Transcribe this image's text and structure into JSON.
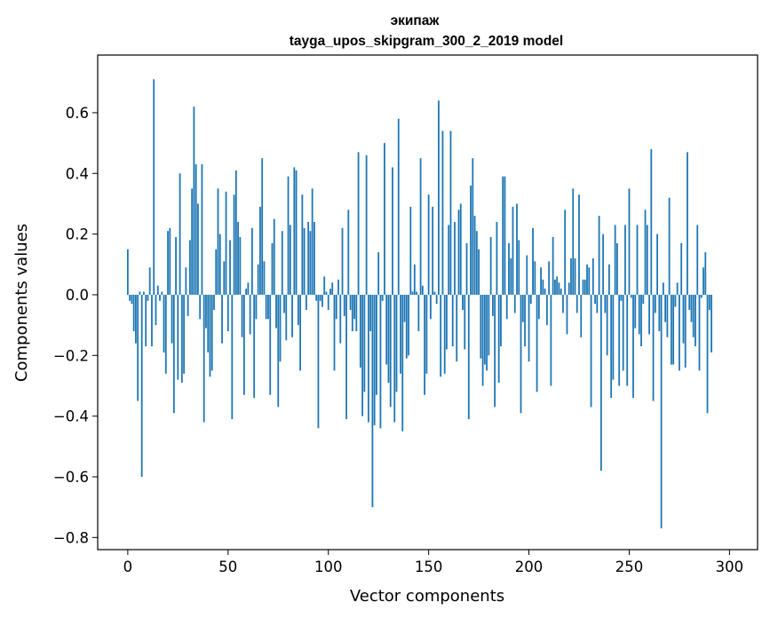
{
  "chart_data": {
    "type": "bar",
    "title": "экипаж",
    "subtitle": "tayga_upos_skipgram_300_2_2019 model",
    "xlabel": "Vector components",
    "ylabel": "Components values",
    "xlim": [
      -15,
      314
    ],
    "ylim": [
      -0.84,
      0.79
    ],
    "x_ticks": [
      0,
      50,
      100,
      150,
      200,
      250,
      300
    ],
    "x_tick_labels": [
      "0",
      "50",
      "100",
      "150",
      "200",
      "250",
      "300"
    ],
    "y_ticks": [
      0.6,
      0.4,
      0.2,
      0.0,
      -0.2,
      -0.4,
      -0.6,
      -0.8
    ],
    "y_tick_labels": [
      "0.6",
      "0.4",
      "0.2",
      "0.0",
      "−0.2",
      "−0.4",
      "−0.6",
      "−0.8"
    ],
    "bar_color": "#1f77b4",
    "grid": false,
    "series": [
      {
        "x_start": 0,
        "values": [
          0.15,
          -0.02,
          -0.03,
          -0.12,
          -0.16,
          -0.35,
          0.01,
          -0.6,
          0.01,
          -0.17,
          -0.02,
          0.09,
          -0.17,
          0.71,
          -0.1,
          0.03,
          -0.02,
          0.01,
          -0.19,
          -0.26,
          0.21,
          0.22,
          -0.16,
          -0.39,
          0.19,
          -0.28,
          0.4,
          -0.29,
          -0.26,
          0.09,
          -0.07,
          0.18,
          0.35,
          0.62,
          0.43,
          0.3,
          -0.08,
          0.43,
          -0.42,
          -0.11,
          -0.19,
          -0.27,
          -0.25,
          -0.05,
          0.15,
          0.35,
          0.2,
          -0.16,
          0.11,
          0.34,
          -0.12,
          0.18,
          -0.41,
          0.33,
          0.41,
          0.24,
          0.19,
          -0.14,
          -0.33,
          0.02,
          0.04,
          -0.13,
          0.22,
          -0.34,
          -0.08,
          0.1,
          0.29,
          0.45,
          0.11,
          -0.08,
          -0.08,
          -0.33,
          0.17,
          0.25,
          -0.11,
          -0.37,
          -0.22,
          0.21,
          -0.06,
          -0.15,
          0.39,
          0.23,
          -0.14,
          0.42,
          0.41,
          -0.1,
          -0.25,
          0.33,
          0.22,
          -0.05,
          0.24,
          0.21,
          0.35,
          0.24,
          -0.02,
          -0.44,
          -0.02,
          -0.04,
          0.06,
          0.01,
          -0.05,
          0.02,
          0.04,
          -0.25,
          -0.08,
          0.05,
          -0.16,
          0.22,
          -0.07,
          -0.41,
          0.28,
          -0.05,
          -0.12,
          -0.08,
          -0.12,
          0.47,
          -0.24,
          -0.4,
          -0.32,
          0.46,
          -0.42,
          -0.12,
          -0.7,
          -0.43,
          -0.33,
          0.14,
          -0.44,
          -0.02,
          0.5,
          -0.23,
          -0.29,
          -0.37,
          0.42,
          -0.42,
          -0.32,
          0.58,
          -0.26,
          -0.45,
          -0.09,
          -0.21,
          -0.2,
          0.29,
          0.01,
          0.1,
          0.01,
          -0.12,
          0.45,
          0.03,
          -0.33,
          -0.26,
          0.33,
          -0.08,
          0.29,
          0.01,
          -0.03,
          0.64,
          -0.27,
          0.54,
          -0.26,
          -0.18,
          0.23,
          0.54,
          -0.17,
          0.24,
          -0.22,
          0.28,
          0.3,
          -0.05,
          -0.18,
          0.17,
          -0.41,
          0.36,
          0.45,
          0.26,
          0.21,
          0.15,
          -0.21,
          -0.3,
          -0.23,
          -0.25,
          -0.2,
          0.19,
          -0.07,
          -0.37,
          0.24,
          -0.29,
          -0.17,
          0.39,
          0.39,
          -0.08,
          0.17,
          0.12,
          0.29,
          -0.06,
          0.3,
          0.18,
          -0.39,
          -0.09,
          -0.17,
          0.13,
          -0.22,
          -0.03,
          0.22,
          0.11,
          -0.32,
          -0.08,
          0.09,
          0.05,
          0.02,
          -0.1,
          0.11,
          -0.3,
          0.19,
          0.05,
          0.06,
          0.04,
          0.02,
          -0.06,
          0.28,
          -0.13,
          0.04,
          0.12,
          0.35,
          0.12,
          -0.06,
          0.33,
          -0.14,
          0.05,
          0.05,
          0.1,
          0.09,
          -0.37,
          0.12,
          -0.03,
          -0.06,
          0.26,
          -0.58,
          0.2,
          -0.06,
          -0.2,
          0.1,
          -0.34,
          -0.28,
          0.23,
          0.17,
          -0.3,
          -0.02,
          -0.25,
          0.23,
          -0.3,
          0.35,
          -0.01,
          -0.34,
          -0.11,
          0.23,
          -0.13,
          -0.17,
          -0.03,
          0.28,
          0.23,
          -0.13,
          0.48,
          -0.35,
          -0.06,
          0.2,
          -0.12,
          -0.77,
          0.04,
          -0.09,
          -0.14,
          0.32,
          -0.23,
          -0.23,
          -0.04,
          0.04,
          -0.25,
          0.17,
          -0.16,
          -0.24,
          0.47,
          -0.05,
          -0.09,
          -0.14,
          -0.17,
          0.23,
          -0.25,
          -0.01,
          0.09,
          0.14,
          -0.39,
          -0.05,
          -0.19
        ]
      }
    ]
  }
}
